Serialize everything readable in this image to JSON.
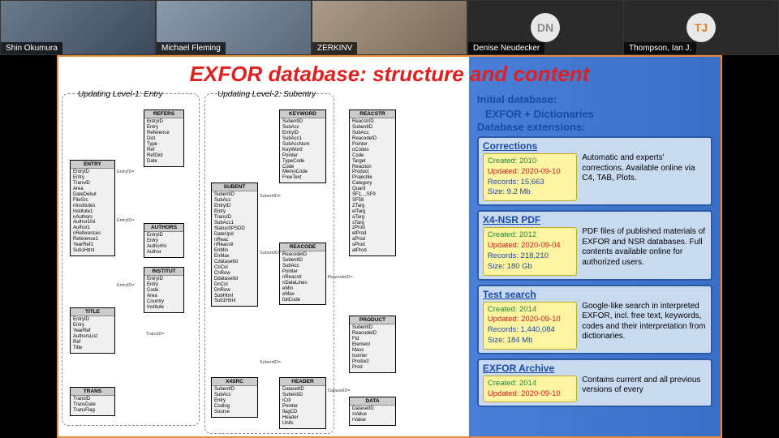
{
  "participants": [
    {
      "name": "Shin Okumura",
      "type": "video",
      "class": "v1"
    },
    {
      "name": "Michael Fleming",
      "type": "video",
      "class": "v2"
    },
    {
      "name": "ZERKINV",
      "type": "video",
      "class": "v3"
    },
    {
      "name": "Denise Neudecker",
      "type": "avatar",
      "initials": "DN",
      "avclass": "av-dn"
    },
    {
      "name": "Thompson, Ian J.",
      "type": "avatar",
      "initials": "TJ",
      "avclass": "av-tj"
    }
  ],
  "slide": {
    "title": "EXFOR database: structure and content",
    "legend1": "Updating Level-1: Entry",
    "legend2": "Updating Level-2: Subentry",
    "initial": "Initial database:",
    "initial2": "EXFOR + Dictionaries",
    "ext": "Database extensions:",
    "boxes": {
      "entry": {
        "title": "ENTRY",
        "fields": "EntryID\nEntry\nTransID\nArea\nDateDebut\nFileSrc\nnInstitutes\nInstitute1\nnAuthors\nAuthor1Ini\nAuthor1\nnReferences\nReference1\nYearRef1\nSub1Html"
      },
      "title": {
        "title": "TITLE",
        "fields": "EntryID\nEntry\nYearRef\nAuthorsList\nRef\nTitle"
      },
      "trans": {
        "title": "TRANS",
        "fields": "TransID\nTransDate\nTransFlag"
      },
      "refers": {
        "title": "REFERS",
        "fields": "EntryID\nEntry\nReference\nDict\nType\nRef\nRefDict\nDate"
      },
      "authors": {
        "title": "AUTHORS",
        "fields": "EntryID\nEntry\nAuthorIni\nAuthor"
      },
      "institut": {
        "title": "INSTITUT",
        "fields": "EntryID\nEntry\nCode\nArea\nCountry\nInstitute"
      },
      "subent": {
        "title": "SUBENT",
        "fields": "SubentID\nSubAcc\nEntryID\nEntry\nTransID\nSubAcc1\nStatusSPSDD\nDateUpd\nnReac\nnReacstr\nEnMin\nEnMax\nCdatasetId\nCnCol\nCnRow\nDdatasetId\nDnCol\nDnRow\nSubHtml\nSub1Html"
      },
      "x4src": {
        "title": "X4SRC",
        "fields": "SubentID\nSubAcc\nEntry\nCoding\nSource"
      },
      "keyword": {
        "title": "KEYWORD",
        "fields": "SubentID\nSubAcc\nEntryID\nSubAcc1\nSubAccNum\nKeyWord\nPointer\nTypeCode\nCode\nMemoCode\nFreeText"
      },
      "reacode": {
        "title": "REACODE",
        "fields": "ReacodeID\nSubentID\nSubAcc\nPointer\nnReacstr\nnDataLines\neMin\neMax\nfullCode"
      },
      "header": {
        "title": "HEADER",
        "fields": "DatasetID\nSubentID\niCol\nPointer\nflagCD\nHeader\nUnits"
      },
      "reacstr": {
        "title": "REACSTR",
        "fields": "ReacstrID\nSubentID\nSubAcc\nReacodeID\nPointer\nnCodes\nCode\nTarget\nReaction\nProduct\nProjectile\nCategory\nQuant\nSF1,..,SF9\nSF58\nZTarg\nelTarg\naTarg\nsTarg\nzProd\nelProd\naProd\nsProd\natProd"
      },
      "product": {
        "title": "PRODUCT",
        "fields": "SubentID\nReacodeID\nFld\nElement\nMass\nIsomer\nProduct\nProd"
      },
      "data": {
        "title": "DATA",
        "fields": "DatasetID\nsValue\nrValue"
      }
    },
    "cards": [
      {
        "title": "Corrections",
        "created": "Created: 2010",
        "updated": "Updated: 2020-09-10",
        "records": "Records: 15,663",
        "size": "Size: 9.2 Mb",
        "desc": "Automatic and experts' corrections. Available online via C4, TAB, Plots."
      },
      {
        "title": "X4-NSR PDF",
        "created": "Created: 2012",
        "updated": "Updated: 2020-09-04",
        "records": "Records: 218,210",
        "size": "Size: 180 Gb",
        "desc": "PDF files of published materials of EXFOR and NSR databases. Full contents available online for authorized users."
      },
      {
        "title": "Test search",
        "created": "Created: 2014",
        "updated": "Updated: 2020-09-10",
        "records": "Records: 1,440,084",
        "size": "Size: 184 Mb",
        "desc": "Google-like search in interpreted EXFOR, incl. free text, keywords, codes and their interpretation from dictionaries."
      },
      {
        "title": "EXFOR Archive",
        "created": "Created: 2014",
        "updated": "Updated: 2020-09-10",
        "records": "",
        "size": "",
        "desc": "Contains current and all previous versions of every"
      }
    ]
  },
  "arrows": {
    "l1": "EntryID=",
    "l2": "TransID=",
    "l3": "SubentID=",
    "l4": "ReacodeID=",
    "l5": "DatasetID="
  }
}
